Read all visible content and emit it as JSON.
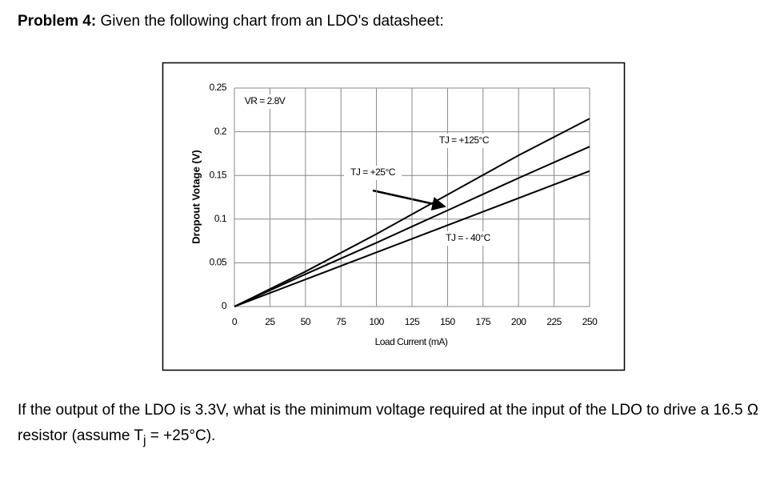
{
  "problem": {
    "label": "Problem 4:",
    "text": "Given the following chart from an LDO's datasheet:"
  },
  "chart_data": {
    "type": "line",
    "x_label": "Load Current (mA)",
    "y_label": "Dropout Votage (V)",
    "x": [
      0,
      50,
      100,
      150,
      200,
      250
    ],
    "series": [
      {
        "name": "TJ = +125°C",
        "color": "#000000",
        "values": [
          0,
          0.04,
          0.083,
          0.128,
          0.173,
          0.215
        ]
      },
      {
        "name": "TJ = +25°C",
        "color": "#000000",
        "values": [
          0,
          0.037,
          0.073,
          0.11,
          0.147,
          0.183
        ]
      },
      {
        "name": "TJ = - 40°C",
        "color": "#000000",
        "values": [
          0,
          0.031,
          0.062,
          0.093,
          0.124,
          0.155
        ]
      }
    ],
    "annotations": [
      "VR = 2.8V"
    ],
    "xlim": [
      0,
      250
    ],
    "xticks": [
      0,
      25,
      50,
      75,
      100,
      125,
      150,
      175,
      200,
      225,
      250
    ],
    "ylim": [
      0,
      0.25
    ],
    "yticks": [
      0,
      0.05,
      0.1,
      0.15,
      0.2,
      0.25
    ],
    "grid": true
  },
  "question": {
    "parts": [
      "If the output of the LDO is 3.3V, what is the minimum voltage required at the input of the LDO to drive a 16.5 Ω resistor (assume T",
      "j",
      " = +25°C)."
    ]
  }
}
